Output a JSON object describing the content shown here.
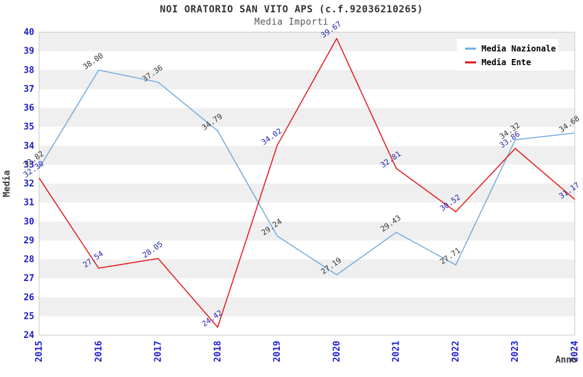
{
  "chart_data": {
    "type": "line",
    "title": "NOI ORATORIO SAN VITO APS (c.f.92036210265)",
    "subtitle": "Media Importi",
    "xlabel": "Anno",
    "ylabel": "Media",
    "ylim": [
      24,
      40
    ],
    "yticks": [
      24,
      25,
      26,
      27,
      28,
      29,
      30,
      31,
      32,
      33,
      34,
      35,
      36,
      37,
      38,
      39,
      40
    ],
    "categories": [
      "2015",
      "2016",
      "2017",
      "2018",
      "2019",
      "2020",
      "2021",
      "2022",
      "2023",
      "2024"
    ],
    "series": [
      {
        "name": "Media Nazionale",
        "color": "#74abdf",
        "label_color": "#333333",
        "values": [
          32.82,
          38.0,
          37.36,
          34.79,
          29.24,
          27.19,
          29.43,
          27.71,
          34.32,
          34.68
        ],
        "labels": [
          "32.82",
          "38.00",
          "37.36",
          "34.79",
          "29.24",
          "27.19",
          "29.43",
          "27.71",
          "34.32",
          "34.68"
        ]
      },
      {
        "name": "Media Ente",
        "color": "#e51718",
        "label_color": "#2525b0",
        "values": [
          32.3,
          27.54,
          28.05,
          24.42,
          34.02,
          39.67,
          32.81,
          30.52,
          33.86,
          31.17
        ],
        "labels": [
          "32.30",
          "27.54",
          "28.05",
          "24.42",
          "34.02",
          "39.67",
          "32.81",
          "30.52",
          "33.86",
          "31.17"
        ]
      }
    ],
    "legend_position": "top-right",
    "grid": "horizontal-stripes",
    "colors": {
      "stripe": "#efefef",
      "plot_border": "#c8c8c8",
      "tick_label": "#1d1dd0",
      "axis_title": "#3a3a3a",
      "legend_text": "#000000",
      "legend_bg": "#ffffff"
    }
  }
}
